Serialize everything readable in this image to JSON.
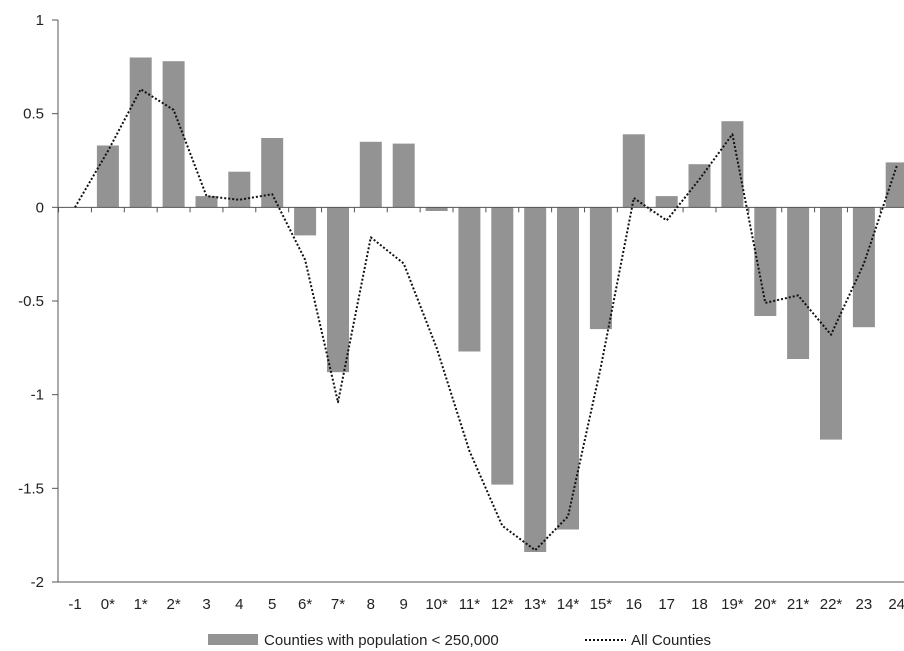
{
  "chart_data": {
    "type": "bar",
    "title": "",
    "xlabel": "",
    "ylabel": "",
    "ylim": [
      -2,
      1
    ],
    "yticks": [
      "1",
      "0.5",
      "0",
      "-0.5",
      "-1",
      "-1.5",
      "-2"
    ],
    "ytick_values": [
      1,
      0.5,
      0,
      -0.5,
      -1,
      -1.5,
      -2
    ],
    "categories": [
      "-1",
      "0*",
      "1*",
      "2*",
      "3",
      "4",
      "5",
      "6*",
      "7*",
      "8",
      "9",
      "10*",
      "11*",
      "12*",
      "13*",
      "14*",
      "15*",
      "16",
      "17",
      "18",
      "19*",
      "20*",
      "21*",
      "22*",
      "23",
      "24"
    ],
    "series": [
      {
        "name": "Counties with population < 250,000",
        "type": "bar",
        "color": "#939393",
        "values": [
          null,
          0.33,
          0.8,
          0.78,
          0.06,
          0.19,
          0.37,
          -0.15,
          -0.88,
          0.35,
          0.34,
          -0.02,
          -0.77,
          -1.48,
          -1.84,
          -1.72,
          -0.65,
          0.39,
          0.06,
          0.23,
          0.46,
          -0.58,
          -0.81,
          -1.24,
          -0.64,
          0.24
        ]
      },
      {
        "name": "All Counties",
        "type": "line",
        "style": "dotted",
        "color": "#111111",
        "values": [
          0.0,
          0.3,
          0.63,
          0.52,
          0.06,
          0.04,
          0.07,
          -0.28,
          -1.04,
          -0.16,
          -0.3,
          -0.75,
          -1.3,
          -1.7,
          -1.83,
          -1.65,
          -0.85,
          0.05,
          -0.07,
          0.15,
          0.39,
          -0.51,
          -0.47,
          -0.68,
          -0.3,
          0.22
        ]
      }
    ],
    "legend_position": "bottom",
    "grid": false
  }
}
